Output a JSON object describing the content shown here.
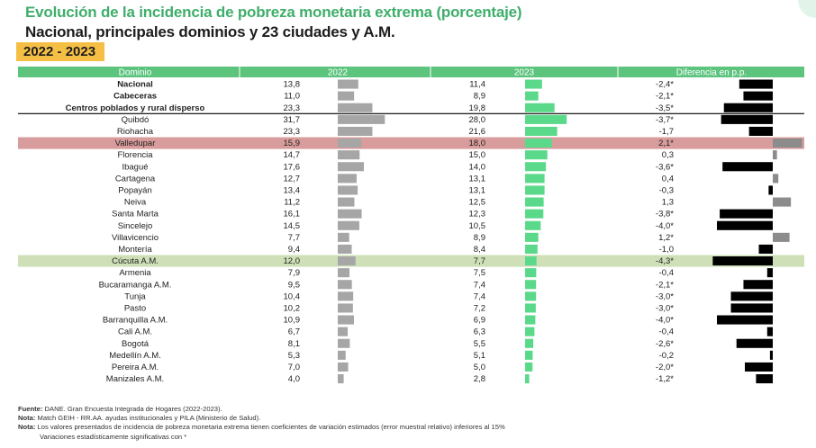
{
  "title": "Evolución de la incidencia de pobreza monetaria extrema (porcentaje)",
  "subtitle": "Nacional, principales dominios y 23 ciudades y A.M.",
  "period": "2022 - 2023",
  "colors": {
    "header_bg": "#5dc47e",
    "bar_2022": "#a6a6a6",
    "bar_2023": "#5bd98a",
    "bar_diff": "#000000",
    "bar_diff_positive": "#8c8c8c",
    "highlight_red": "#d99c9c",
    "highlight_green": "#cfe0b8"
  },
  "chart_data": {
    "type": "table",
    "columns": [
      "Dominio",
      "2022",
      "2023",
      "Diferencia en p.p."
    ],
    "rows": [
      {
        "domain": "Nacional",
        "v2022": 13.8,
        "v2023": 11.4,
        "diff": -2.4,
        "l2022": "13,8",
        "l2023": "11,4",
        "ldiff": "-2,4*",
        "bold": true
      },
      {
        "domain": "Cabeceras",
        "v2022": 11.0,
        "v2023": 8.9,
        "diff": -2.1,
        "l2022": "11,0",
        "l2023": "8,9",
        "ldiff": "-2,1*",
        "bold": true
      },
      {
        "domain": "Centros poblados y rural disperso",
        "v2022": 23.3,
        "v2023": 19.8,
        "diff": -3.5,
        "l2022": "23,3",
        "l2023": "19,8",
        "ldiff": "-3,5*",
        "bold": true
      },
      {
        "domain": "Quibdó",
        "v2022": 31.7,
        "v2023": 28.0,
        "diff": -3.7,
        "l2022": "31,7",
        "l2023": "28,0",
        "ldiff": "-3,7*"
      },
      {
        "domain": "Riohacha",
        "v2022": 23.3,
        "v2023": 21.6,
        "diff": -1.7,
        "l2022": "23,3",
        "l2023": "21,6",
        "ldiff": "-1,7"
      },
      {
        "domain": "Valledupar",
        "v2022": 15.9,
        "v2023": 18.0,
        "diff": 2.1,
        "l2022": "15,9",
        "l2023": "18,0",
        "ldiff": "2,1*",
        "highlight": "red"
      },
      {
        "domain": "Florencia",
        "v2022": 14.7,
        "v2023": 15.0,
        "diff": 0.3,
        "l2022": "14,7",
        "l2023": "15,0",
        "ldiff": "0,3"
      },
      {
        "domain": "Ibagué",
        "v2022": 17.6,
        "v2023": 14.0,
        "diff": -3.6,
        "l2022": "17,6",
        "l2023": "14,0",
        "ldiff": "-3,6*"
      },
      {
        "domain": "Cartagena",
        "v2022": 12.7,
        "v2023": 13.1,
        "diff": 0.4,
        "l2022": "12,7",
        "l2023": "13,1",
        "ldiff": "0,4"
      },
      {
        "domain": "Popayán",
        "v2022": 13.4,
        "v2023": 13.1,
        "diff": -0.3,
        "l2022": "13,4",
        "l2023": "13,1",
        "ldiff": "-0,3"
      },
      {
        "domain": "Neiva",
        "v2022": 11.2,
        "v2023": 12.5,
        "diff": 1.3,
        "l2022": "11,2",
        "l2023": "12,5",
        "ldiff": "1,3"
      },
      {
        "domain": "Santa Marta",
        "v2022": 16.1,
        "v2023": 12.3,
        "diff": -3.8,
        "l2022": "16,1",
        "l2023": "12,3",
        "ldiff": "-3,8*"
      },
      {
        "domain": "Sincelejo",
        "v2022": 14.5,
        "v2023": 10.5,
        "diff": -4.0,
        "l2022": "14,5",
        "l2023": "10,5",
        "ldiff": "-4,0*"
      },
      {
        "domain": "Villavicencio",
        "v2022": 7.7,
        "v2023": 8.9,
        "diff": 1.2,
        "l2022": "7,7",
        "l2023": "8,9",
        "ldiff": "1,2*"
      },
      {
        "domain": "Montería",
        "v2022": 9.4,
        "v2023": 8.4,
        "diff": -1.0,
        "l2022": "9,4",
        "l2023": "8,4",
        "ldiff": "-1,0"
      },
      {
        "domain": "Cúcuta A.M.",
        "v2022": 12.0,
        "v2023": 7.7,
        "diff": -4.3,
        "l2022": "12,0",
        "l2023": "7,7",
        "ldiff": "-4,3*",
        "highlight": "green"
      },
      {
        "domain": "Armenia",
        "v2022": 7.9,
        "v2023": 7.5,
        "diff": -0.4,
        "l2022": "7,9",
        "l2023": "7,5",
        "ldiff": "-0,4"
      },
      {
        "domain": "Bucaramanga A.M.",
        "v2022": 9.5,
        "v2023": 7.4,
        "diff": -2.1,
        "l2022": "9,5",
        "l2023": "7,4",
        "ldiff": "-2,1*"
      },
      {
        "domain": "Tunja",
        "v2022": 10.4,
        "v2023": 7.4,
        "diff": -3.0,
        "l2022": "10,4",
        "l2023": "7,4",
        "ldiff": "-3,0*"
      },
      {
        "domain": "Pasto",
        "v2022": 10.2,
        "v2023": 7.2,
        "diff": -3.0,
        "l2022": "10,2",
        "l2023": "7,2",
        "ldiff": "-3,0*"
      },
      {
        "domain": "Barranquilla A.M.",
        "v2022": 10.9,
        "v2023": 6.9,
        "diff": -4.0,
        "l2022": "10,9",
        "l2023": "6,9",
        "ldiff": "-4,0*"
      },
      {
        "domain": "Cali A.M.",
        "v2022": 6.7,
        "v2023": 6.3,
        "diff": -0.4,
        "l2022": "6,7",
        "l2023": "6,3",
        "ldiff": "-0,4"
      },
      {
        "domain": "Bogotá",
        "v2022": 8.1,
        "v2023": 5.5,
        "diff": -2.6,
        "l2022": "8,1",
        "l2023": "5,5",
        "ldiff": "-2,6*"
      },
      {
        "domain": "Medellín A.M.",
        "v2022": 5.3,
        "v2023": 5.1,
        "diff": -0.2,
        "l2022": "5,3",
        "l2023": "5,1",
        "ldiff": "-0,2"
      },
      {
        "domain": "Pereira A.M.",
        "v2022": 7.0,
        "v2023": 5.0,
        "diff": -2.0,
        "l2022": "7,0",
        "l2023": "5,0",
        "ldiff": "-2,0*"
      },
      {
        "domain": "Manizales A.M.",
        "v2022": 4.0,
        "v2023": 2.8,
        "diff": -1.2,
        "l2022": "4,0",
        "l2023": "2,8",
        "ldiff": "-1,2*"
      }
    ]
  },
  "notes": {
    "fuente_label": "Fuente:",
    "fuente_text": " DANE. Gran Encuesta Integrada de Hogares (2022-2023).",
    "nota1_label": "Nota:",
    "nota1_text": " Match GEIH - RR.AA. ayudas institucionales y PILA (Ministerio de Salud).",
    "nota2_label": "Nota:",
    "nota2_text": " Los valores presentados de incidencia de pobreza monetaria extrema tienen coeficientes de variación estimados (error muestral relativo) inferiores al 15%",
    "nota3_text": "Variaciones estadísticamente significativas con *"
  }
}
